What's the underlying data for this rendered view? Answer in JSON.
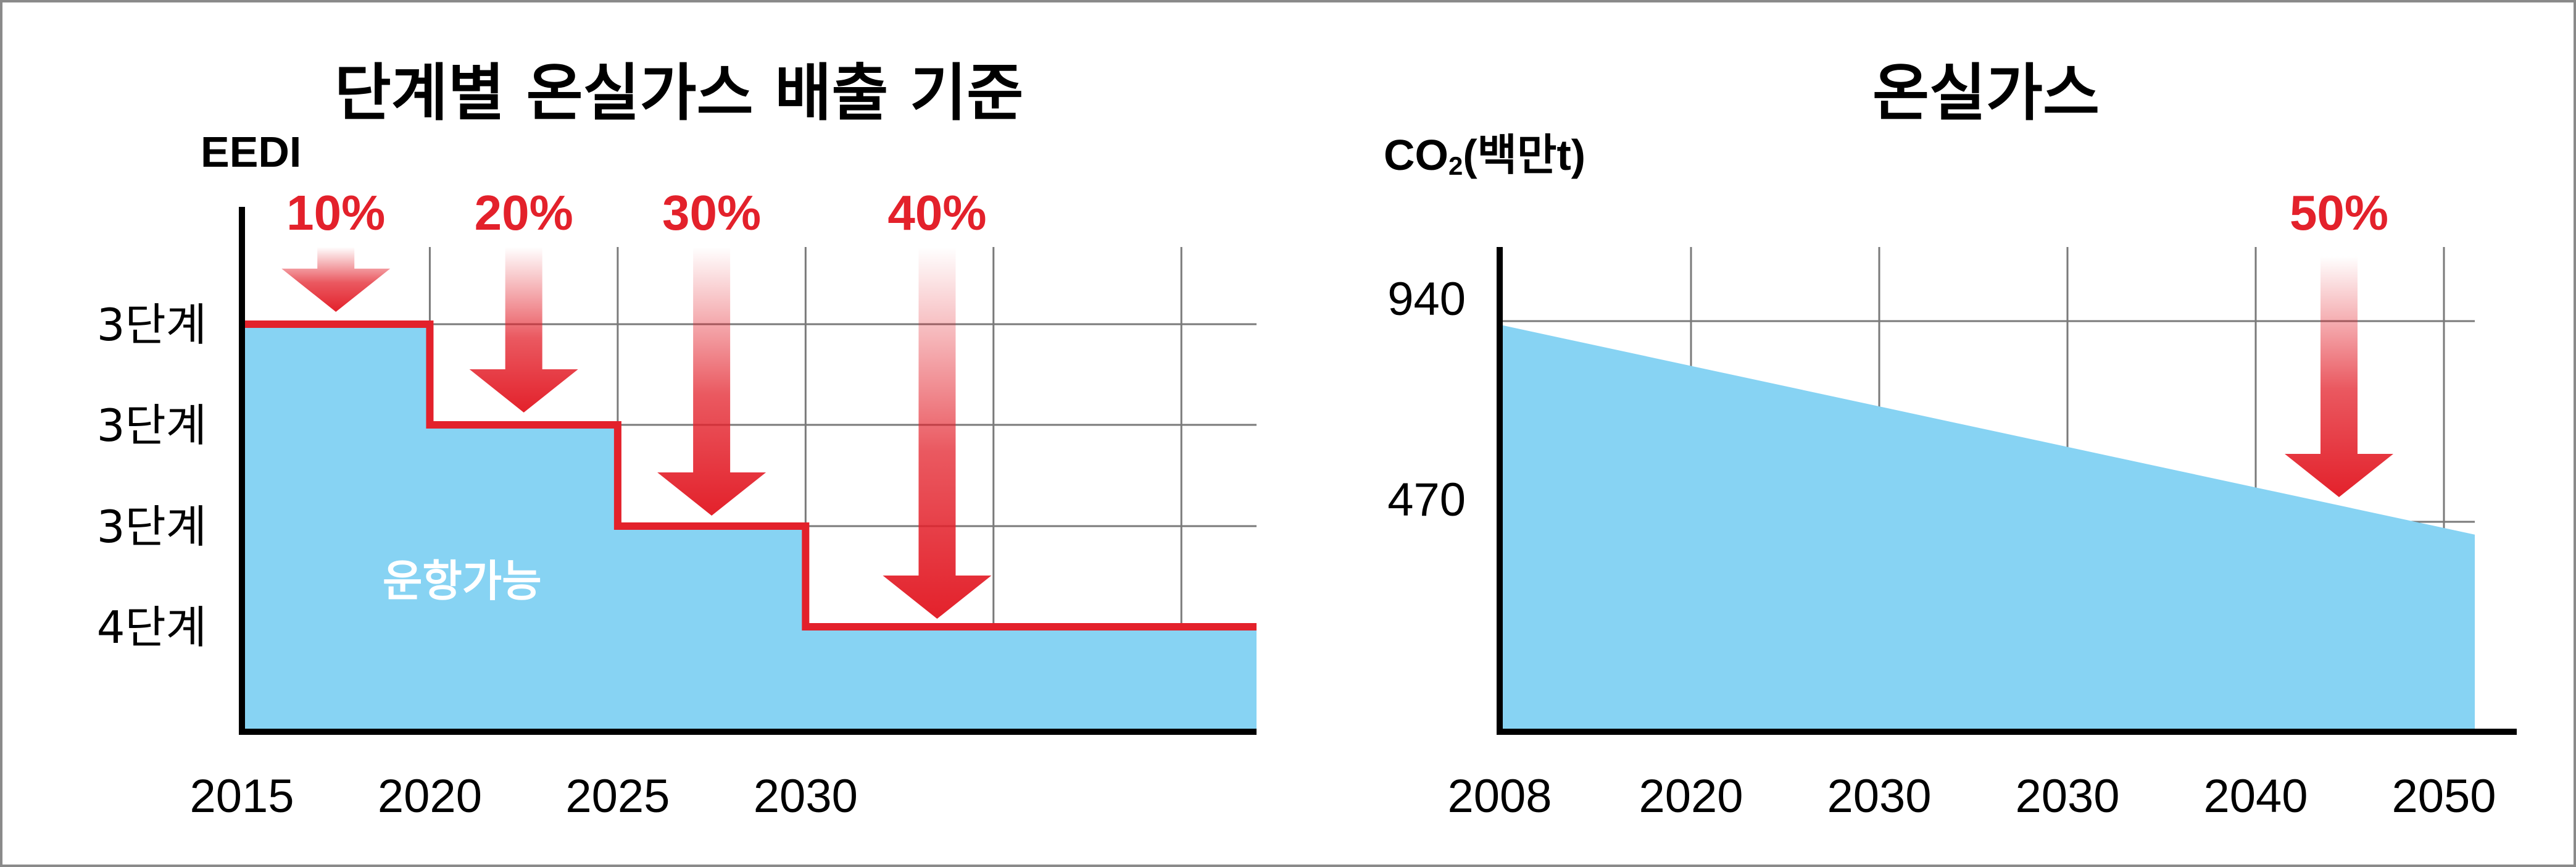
{
  "colors": {
    "area": "#87d3f3",
    "step_line": "#e3212b",
    "arrow": "#e3212b",
    "grid": "#7a7a7a",
    "frame": "#8a8a8a"
  },
  "chart_data": [
    {
      "type": "area",
      "title": "단계별 온실가스 배출 기준",
      "ylabel": "EEDI",
      "area_label": "운항가능",
      "x_ticks": [
        "2015",
        "2020",
        "2025",
        "2030"
      ],
      "xlim": [
        2015,
        2042
      ],
      "y_categories": [
        "3단계",
        "3단계",
        "3단계",
        "4단계"
      ],
      "steps": [
        {
          "x_start": 2015,
          "x_end": 2020,
          "level": "3단계",
          "level_index": 0
        },
        {
          "x_start": 2020,
          "x_end": 2025,
          "level": "3단계",
          "level_index": 1
        },
        {
          "x_start": 2025,
          "x_end": 2030,
          "level": "3단계",
          "level_index": 2
        },
        {
          "x_start": 2030,
          "x_end": 2042,
          "level": "4단계",
          "level_index": 3
        }
      ],
      "reductions": [
        {
          "label": "10%",
          "x": 2017.5
        },
        {
          "label": "20%",
          "x": 2022.5
        },
        {
          "label": "30%",
          "x": 2027.5
        },
        {
          "label": "40%",
          "x": 2033.5
        }
      ],
      "grid": true
    },
    {
      "type": "area",
      "title": "온실가스",
      "ylabel": "CO",
      "ylabel_sub": "2",
      "ylabel_suffix": "(백만t)",
      "x_ticks": [
        "2008",
        "2020",
        "2030",
        "2030",
        "2040",
        "2050"
      ],
      "y_ticks": [
        940,
        470
      ],
      "ylim": [
        0,
        1100
      ],
      "x": [
        "2008",
        "2052"
      ],
      "values": [
        930,
        440
      ],
      "reductions": [
        {
          "label": "50%",
          "x": 2045
        }
      ],
      "grid": true
    }
  ]
}
